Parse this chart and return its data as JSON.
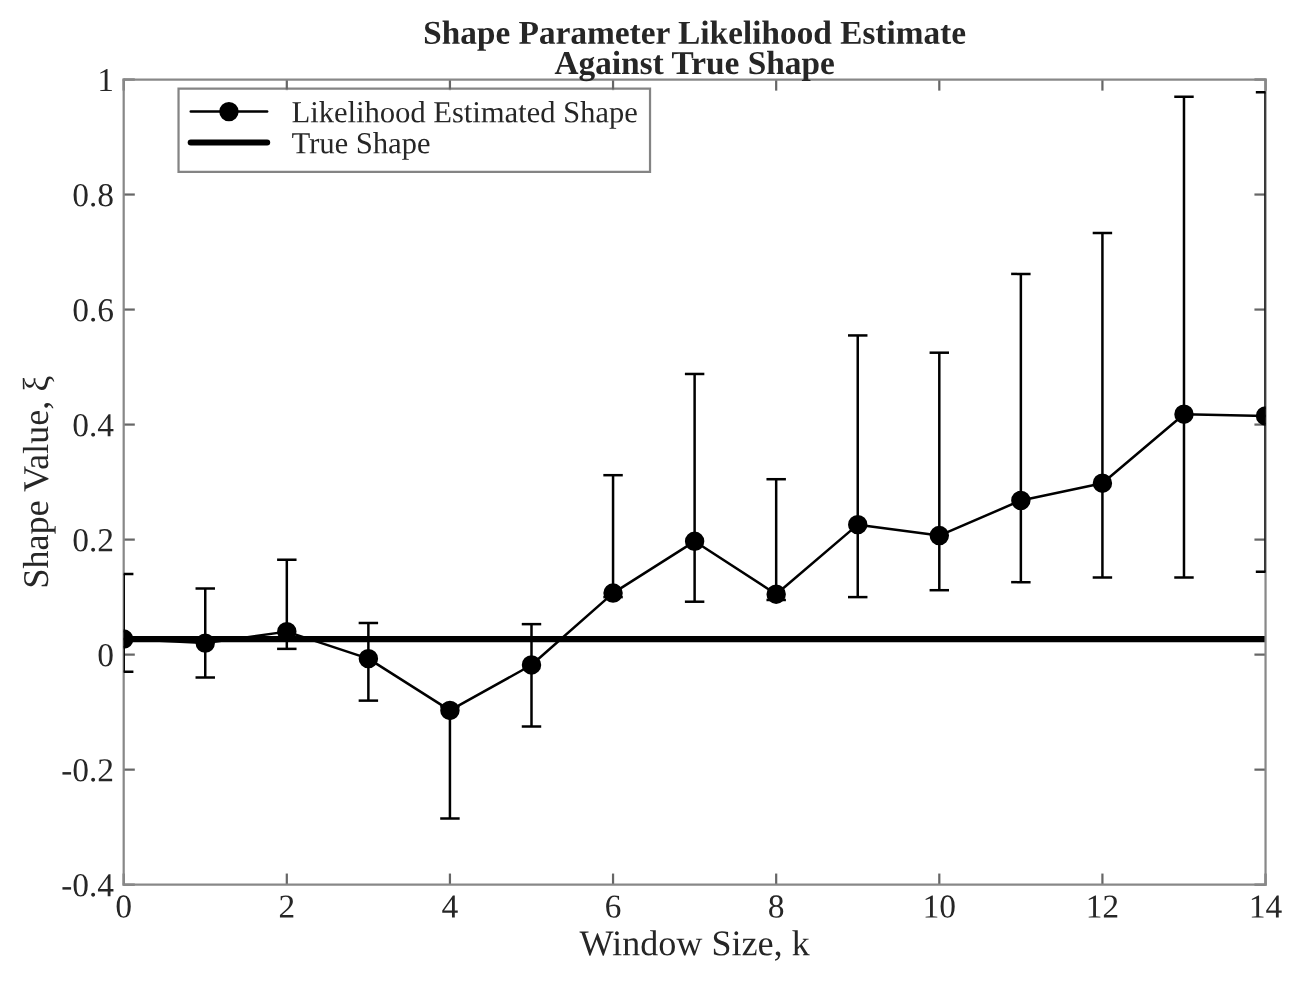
{
  "chart_data": {
    "type": "line",
    "title": "Shape Parameter Likelihood Estimate\nAgainst True Shape",
    "xlabel": "Window Size, k",
    "ylabel": "Shape Value, ξ",
    "x": [
      0,
      1,
      2,
      3,
      4,
      5,
      6,
      7,
      8,
      9,
      10,
      11,
      12,
      13,
      14
    ],
    "series": [
      {
        "name": "Likelihood Estimated Shape",
        "color": "#000000",
        "values": [
          0.027,
          0.02,
          0.04,
          -0.007,
          -0.097,
          -0.018,
          0.107,
          0.197,
          0.105,
          0.226,
          0.207,
          0.268,
          0.298,
          0.418,
          0.415
        ],
        "errors": [
          [
            -0.03,
            0.14
          ],
          [
            -0.04,
            0.115
          ],
          [
            0.01,
            0.165
          ],
          [
            -0.08,
            0.055
          ],
          [
            -0.285,
            -0.09
          ],
          [
            -0.125,
            0.053
          ],
          [
            0.1,
            0.312
          ],
          [
            0.092,
            0.488
          ],
          [
            0.095,
            0.305
          ],
          [
            0.1,
            0.555
          ],
          [
            0.112,
            0.525
          ],
          [
            0.126,
            0.662
          ],
          [
            0.134,
            0.733
          ],
          [
            0.134,
            0.97
          ],
          [
            0.144,
            0.978
          ]
        ]
      }
    ],
    "ref_lines": [
      {
        "axis": "y",
        "value": 0.027,
        "label": "True Shape",
        "color": "#000000"
      }
    ],
    "xlim": [
      0,
      14
    ],
    "xticks": [
      0,
      2,
      4,
      6,
      8,
      10,
      12,
      14
    ],
    "ylim": [
      -0.4,
      1
    ],
    "yticks": [
      -0.4,
      -0.2,
      0,
      0.2,
      0.4,
      0.6,
      0.8,
      1
    ],
    "marker": "circle",
    "line_style": "solid",
    "grid": false,
    "legend": "top left"
  }
}
